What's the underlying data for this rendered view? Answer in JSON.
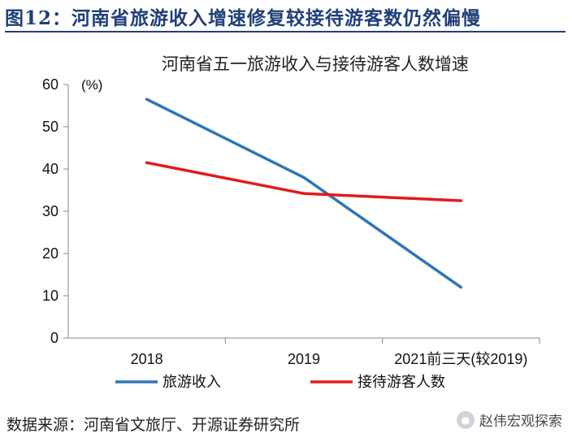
{
  "figure": {
    "title": "图12：河南省旅游收入增速修复较接待游客数仍然偏慢",
    "source": "数据来源：河南省文旅厅、开源证券研究所",
    "watermark": "赵伟宏观探索"
  },
  "chart_data": {
    "type": "line",
    "title": "河南省五一旅游收入与接待游客人数增速",
    "unit_label": "(%)",
    "categories": [
      "2018",
      "2019",
      "2021前三天(较2019)"
    ],
    "ylim": [
      0,
      60
    ],
    "yticks": [
      0,
      10,
      20,
      30,
      40,
      50,
      60
    ],
    "grid": false,
    "legend_position": "bottom",
    "series": [
      {
        "name": "旅游收入",
        "color": "#2e75b6",
        "values": [
          56.5,
          38,
          12
        ]
      },
      {
        "name": "接待游客人数",
        "color": "#e31a1c",
        "values": [
          41.5,
          34.2,
          32.5
        ]
      }
    ]
  }
}
